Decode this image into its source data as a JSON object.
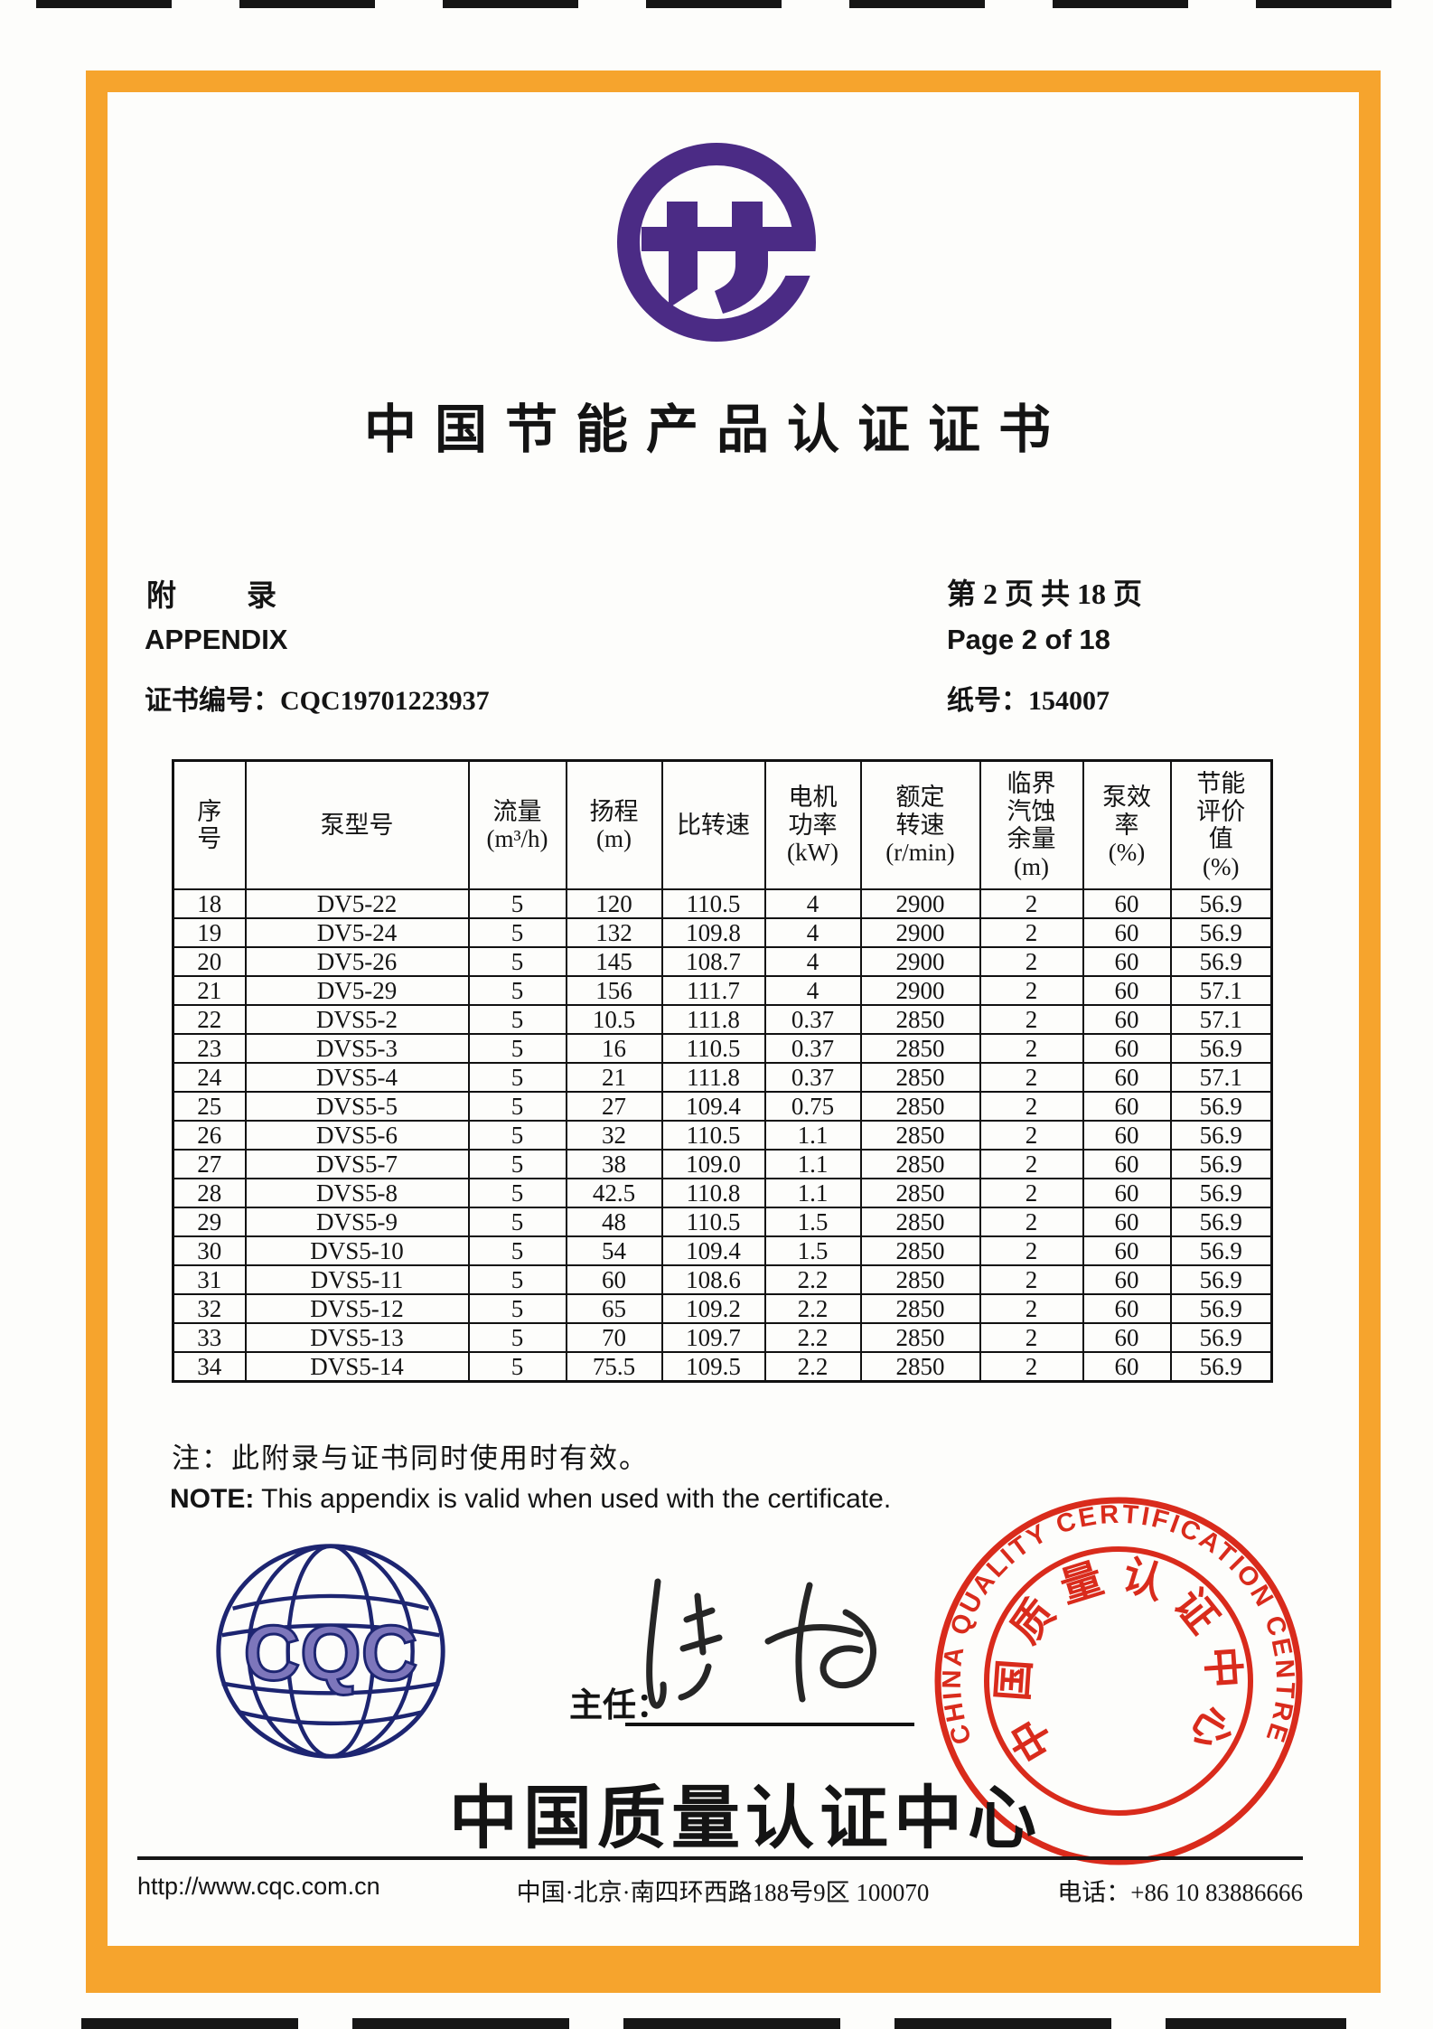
{
  "page": {
    "title": "中国节能产品认证证书",
    "appendix": {
      "label_cn": "附　　录",
      "label_en": "APPENDIX",
      "cert_no_label": "证书编号：",
      "cert_no": "CQC19701223937"
    },
    "paging": {
      "page_cn": "第 2 页 共 18 页",
      "page_en": "Page 2 of 18",
      "paper_no_label": "纸号：",
      "paper_no": "154007"
    }
  },
  "table": {
    "headers": [
      [
        "序",
        "号"
      ],
      [
        "泵型号"
      ],
      [
        "流量",
        "(m³/h)"
      ],
      [
        "扬程",
        "(m)"
      ],
      [
        "比转速"
      ],
      [
        "电机",
        "功率",
        "(kW)"
      ],
      [
        "额定",
        "转速",
        "(r/min)"
      ],
      [
        "临界",
        "汽蚀",
        "余量",
        "(m)"
      ],
      [
        "泵效",
        "率",
        "(%)"
      ],
      [
        "节能",
        "评价",
        "值",
        "(%)"
      ]
    ],
    "rows": [
      [
        "18",
        "DV5-22",
        "5",
        "120",
        "110.5",
        "4",
        "2900",
        "2",
        "60",
        "56.9"
      ],
      [
        "19",
        "DV5-24",
        "5",
        "132",
        "109.8",
        "4",
        "2900",
        "2",
        "60",
        "56.9"
      ],
      [
        "20",
        "DV5-26",
        "5",
        "145",
        "108.7",
        "4",
        "2900",
        "2",
        "60",
        "56.9"
      ],
      [
        "21",
        "DV5-29",
        "5",
        "156",
        "111.7",
        "4",
        "2900",
        "2",
        "60",
        "57.1"
      ],
      [
        "22",
        "DVS5-2",
        "5",
        "10.5",
        "111.8",
        "0.37",
        "2850",
        "2",
        "60",
        "57.1"
      ],
      [
        "23",
        "DVS5-3",
        "5",
        "16",
        "110.5",
        "0.37",
        "2850",
        "2",
        "60",
        "56.9"
      ],
      [
        "24",
        "DVS5-4",
        "5",
        "21",
        "111.8",
        "0.37",
        "2850",
        "2",
        "60",
        "57.1"
      ],
      [
        "25",
        "DVS5-5",
        "5",
        "27",
        "109.4",
        "0.75",
        "2850",
        "2",
        "60",
        "56.9"
      ],
      [
        "26",
        "DVS5-6",
        "5",
        "32",
        "110.5",
        "1.1",
        "2850",
        "2",
        "60",
        "56.9"
      ],
      [
        "27",
        "DVS5-7",
        "5",
        "38",
        "109.0",
        "1.1",
        "2850",
        "2",
        "60",
        "56.9"
      ],
      [
        "28",
        "DVS5-8",
        "5",
        "42.5",
        "110.8",
        "1.1",
        "2850",
        "2",
        "60",
        "56.9"
      ],
      [
        "29",
        "DVS5-9",
        "5",
        "48",
        "110.5",
        "1.5",
        "2850",
        "2",
        "60",
        "56.9"
      ],
      [
        "30",
        "DVS5-10",
        "5",
        "54",
        "109.4",
        "1.5",
        "2850",
        "2",
        "60",
        "56.9"
      ],
      [
        "31",
        "DVS5-11",
        "5",
        "60",
        "108.6",
        "2.2",
        "2850",
        "2",
        "60",
        "56.9"
      ],
      [
        "32",
        "DVS5-12",
        "5",
        "65",
        "109.2",
        "2.2",
        "2850",
        "2",
        "60",
        "56.9"
      ],
      [
        "33",
        "DVS5-13",
        "5",
        "70",
        "109.7",
        "2.2",
        "2850",
        "2",
        "60",
        "56.9"
      ],
      [
        "34",
        "DVS5-14",
        "5",
        "75.5",
        "109.5",
        "2.2",
        "2850",
        "2",
        "60",
        "56.9"
      ]
    ]
  },
  "note": {
    "cn": "注：此附录与证书同时使用时有效。",
    "en_label": "NOTE:",
    "en_text": " This appendix is valid when used with the certificate."
  },
  "signature": {
    "label": "主任：",
    "name": "陆梅"
  },
  "globe": {
    "letters": "CQC"
  },
  "stamp": {
    "outer_text": "CHINA QUALITY CERTIFICATION CENTRE",
    "inner_text": "中国质量认证中心",
    "color": "#d92b1c"
  },
  "org": {
    "name_cn": "中国质量认证中心"
  },
  "footer": {
    "url": "http://www.cqc.com.cn",
    "address": "中国·北京·南四环西路188号9区  100070",
    "phone_label": "电话：",
    "phone": "+86 10 83886666"
  },
  "colors": {
    "frame_orange": "#f6a42d",
    "logo_purple": "#4b2b85",
    "globe_navy": "#1d2571",
    "globe_letter_fill": "#7d76bb",
    "stamp_red": "#d92b1c"
  }
}
